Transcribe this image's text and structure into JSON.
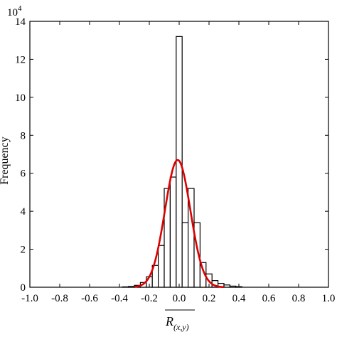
{
  "chart_data": {
    "type": "bar",
    "ylabel": "Frequency",
    "xlabel_main": "R",
    "xlabel_sub": "(x,y)",
    "y_multiplier_label": "10",
    "y_multiplier_exp": "4",
    "xlim": [
      -1.0,
      1.0
    ],
    "ylim": [
      0,
      14
    ],
    "x_ticks": [
      -1.0,
      -0.8,
      -0.6,
      -0.4,
      -0.2,
      0.0,
      0.2,
      0.4,
      0.6,
      0.8,
      1.0
    ],
    "x_tick_labels": [
      "-1.0",
      "-0.8",
      "-0.6",
      "-0.4",
      "-0.2",
      "0.0",
      "0.2",
      "0.4",
      "0.6",
      "0.8",
      "1.0"
    ],
    "y_ticks": [
      0,
      2,
      4,
      6,
      8,
      10,
      12,
      14
    ],
    "y_tick_labels": [
      "0",
      "2",
      "4",
      "6",
      "8",
      "10",
      "12",
      "14"
    ],
    "bin_width": 0.04,
    "bins": [
      {
        "x": -0.36,
        "value": 0.02
      },
      {
        "x": -0.32,
        "value": 0.04
      },
      {
        "x": -0.28,
        "value": 0.1
      },
      {
        "x": -0.24,
        "value": 0.25
      },
      {
        "x": -0.2,
        "value": 0.55
      },
      {
        "x": -0.16,
        "value": 1.15
      },
      {
        "x": -0.12,
        "value": 2.2
      },
      {
        "x": -0.08,
        "value": 5.2
      },
      {
        "x": -0.04,
        "value": 5.8
      },
      {
        "x": 0.0,
        "value": 13.2
      },
      {
        "x": 0.04,
        "value": 3.4
      },
      {
        "x": 0.08,
        "value": 5.2
      },
      {
        "x": 0.12,
        "value": 3.4
      },
      {
        "x": 0.16,
        "value": 1.3
      },
      {
        "x": 0.2,
        "value": 0.7
      },
      {
        "x": 0.24,
        "value": 0.35
      },
      {
        "x": 0.28,
        "value": 0.2
      },
      {
        "x": 0.32,
        "value": 0.12
      },
      {
        "x": 0.36,
        "value": 0.06
      },
      {
        "x": 0.4,
        "value": 0.03
      }
    ],
    "fit_curve": {
      "type": "gaussian",
      "color": "#dd0000",
      "mean": -0.01,
      "sigma": 0.085,
      "peak": 6.7,
      "x_range": [
        -0.3,
        0.3
      ]
    },
    "bar_fill": "#ffffff",
    "bar_stroke": "#000000",
    "grid": false
  }
}
